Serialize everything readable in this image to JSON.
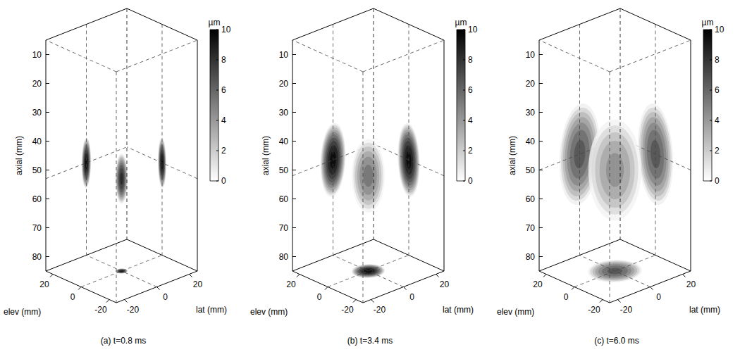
{
  "chart_data": [
    {
      "type": "volume",
      "title": "(a) t=0.8 ms",
      "xlabel": "lat (mm)",
      "ylabel": "elev (mm)",
      "zlabel": "axial (mm)",
      "xlim": [
        -25,
        25
      ],
      "xticks": [
        -20,
        0,
        20
      ],
      "ylim": [
        -25,
        25
      ],
      "yticks": [
        -20,
        0,
        20
      ],
      "zlim": [
        5,
        85
      ],
      "zticks": [
        10,
        20,
        30,
        40,
        50,
        60,
        70,
        80
      ],
      "colorbar": {
        "label": "µm",
        "range": [
          0,
          10
        ],
        "ticks": [
          0,
          2,
          4,
          6,
          8,
          10
        ]
      },
      "displacement": {
        "lat": 0,
        "elev": 0,
        "axial": 53,
        "lat_radius": 3,
        "elev_radius": 3,
        "axial_radius": 9,
        "peak": 9,
        "projection_peak": 10
      }
    },
    {
      "type": "volume",
      "title": "(b) t=3.4 ms",
      "xlabel": "lat (mm)",
      "ylabel": "elev (mm)",
      "zlabel": "axial (mm)",
      "xlim": [
        -25,
        25
      ],
      "xticks": [
        -20,
        0,
        20
      ],
      "ylim": [
        -25,
        25
      ],
      "yticks": [
        -20,
        0,
        20
      ],
      "zlim": [
        5,
        85
      ],
      "zticks": [
        10,
        20,
        30,
        40,
        50,
        60,
        70,
        80
      ],
      "colorbar": {
        "label": "µm",
        "range": [
          0,
          10
        ],
        "ticks": [
          0,
          2,
          4,
          6,
          8,
          10
        ]
      },
      "displacement": {
        "lat": 0,
        "elev": 0,
        "axial": 52,
        "lat_radius": 8,
        "elev_radius": 8,
        "axial_radius": 13,
        "peak": 6,
        "projection_peak": 10
      }
    },
    {
      "type": "volume",
      "title": "(c) t=6.0 ms",
      "xlabel": "lat (mm)",
      "ylabel": "elev (mm)",
      "zlabel": "axial (mm)",
      "xlim": [
        -25,
        25
      ],
      "xticks": [
        -20,
        0,
        20
      ],
      "ylim": [
        -25,
        25
      ],
      "yticks": [
        -20,
        0,
        20
      ],
      "zlim": [
        5,
        85
      ],
      "zticks": [
        10,
        20,
        30,
        40,
        50,
        60,
        70,
        80
      ],
      "colorbar": {
        "label": "µm",
        "range": [
          0,
          10
        ],
        "ticks": [
          0,
          2,
          4,
          6,
          8,
          10
        ]
      },
      "displacement": {
        "lat": 0,
        "elev": 0,
        "axial": 50,
        "lat_radius": 13,
        "elev_radius": 13,
        "axial_radius": 18,
        "peak": 5,
        "projection_peak": 7
      }
    }
  ]
}
